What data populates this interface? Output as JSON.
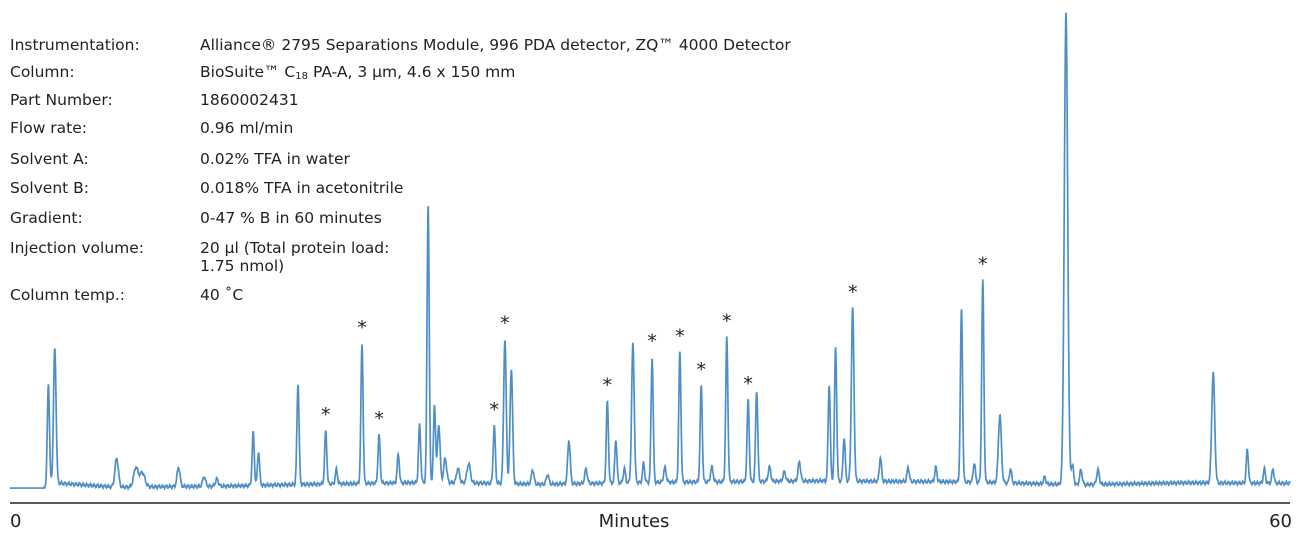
{
  "method": {
    "instrumentation": {
      "label": "Instrumentation:",
      "value": "Alliance® 2795 Separations Module, 996 PDA detector, ZQ™ 4000 Detector"
    },
    "column": {
      "label": "Column:",
      "value_pre": "BioSuite™ C",
      "value_sub": "18",
      "value_post": " PA-A, 3 µm, 4.6 x 150 mm"
    },
    "part_number": {
      "label": "Part Number:",
      "value": "1860002431"
    },
    "flow_rate": {
      "label": "Flow rate:",
      "value": "0.96 ml/min"
    },
    "solvent_a": {
      "label": "Solvent A:",
      "value": "0.02% TFA in water"
    },
    "solvent_b": {
      "label": "Solvent B:",
      "value": "0.018% TFA in acetonitrile"
    },
    "gradient": {
      "label": "Gradient:",
      "value": "0-47 % B in 60 minutes"
    },
    "injection_volume": {
      "label": "Injection volume:",
      "value_line1": "20 µl (Total protein load:",
      "value_line2": "1.75 nmol)"
    },
    "column_temp": {
      "label": "Column temp.:",
      "value": "40 ˚C"
    }
  },
  "chart_data": {
    "type": "line",
    "xlabel": "Minutes",
    "xlim": [
      0,
      60
    ],
    "x_tick_labels": [
      "0",
      "60"
    ],
    "ylim": [
      0,
      100
    ],
    "line_color": "#4f8fc6",
    "baseline": [
      [
        0,
        0.4
      ],
      [
        1.5,
        0.4
      ],
      [
        2,
        1.5
      ],
      [
        5,
        0.6
      ],
      [
        10,
        0.8
      ],
      [
        14,
        1.2
      ],
      [
        20,
        1.6
      ],
      [
        25,
        1.2
      ],
      [
        30,
        1.6
      ],
      [
        38,
        1.9
      ],
      [
        45,
        1.7
      ],
      [
        50,
        1.1
      ],
      [
        55,
        1.5
      ],
      [
        60,
        1.4
      ]
    ],
    "peaks": [
      {
        "rt": 1.8,
        "height": 21,
        "width": 0.05
      },
      {
        "rt": 2.1,
        "height": 28,
        "width": 0.06
      },
      {
        "rt": 5.0,
        "height": 6,
        "width": 0.08
      },
      {
        "rt": 5.9,
        "height": 4,
        "width": 0.1
      },
      {
        "rt": 6.2,
        "height": 3,
        "width": 0.12
      },
      {
        "rt": 7.9,
        "height": 4,
        "width": 0.07
      },
      {
        "rt": 9.1,
        "height": 2,
        "width": 0.07
      },
      {
        "rt": 9.7,
        "height": 1.5,
        "width": 0.07
      },
      {
        "rt": 11.4,
        "height": 11,
        "width": 0.05
      },
      {
        "rt": 11.65,
        "height": 7,
        "width": 0.05
      },
      {
        "rt": 13.5,
        "height": 21,
        "width": 0.05
      },
      {
        "rt": 14.8,
        "height": 11,
        "width": 0.05,
        "starred": true
      },
      {
        "rt": 15.3,
        "height": 3,
        "width": 0.05
      },
      {
        "rt": 16.5,
        "height": 29,
        "width": 0.05,
        "starred": true
      },
      {
        "rt": 17.3,
        "height": 10,
        "width": 0.05,
        "starred": true
      },
      {
        "rt": 18.2,
        "height": 6,
        "width": 0.05
      },
      {
        "rt": 19.2,
        "height": 12,
        "width": 0.05
      },
      {
        "rt": 19.6,
        "height": 58,
        "width": 0.05
      },
      {
        "rt": 19.9,
        "height": 16,
        "width": 0.05
      },
      {
        "rt": 20.1,
        "height": 12,
        "width": 0.06
      },
      {
        "rt": 20.4,
        "height": 5,
        "width": 0.07
      },
      {
        "rt": 21.0,
        "height": 3,
        "width": 0.07
      },
      {
        "rt": 21.5,
        "height": 4,
        "width": 0.08
      },
      {
        "rt": 22.7,
        "height": 12,
        "width": 0.05,
        "starred": true
      },
      {
        "rt": 23.2,
        "height": 30,
        "width": 0.06,
        "starred": true
      },
      {
        "rt": 23.5,
        "height": 24,
        "width": 0.06
      },
      {
        "rt": 24.5,
        "height": 3,
        "width": 0.06
      },
      {
        "rt": 25.2,
        "height": 2,
        "width": 0.06
      },
      {
        "rt": 26.2,
        "height": 9,
        "width": 0.06
      },
      {
        "rt": 27.0,
        "height": 3,
        "width": 0.06
      },
      {
        "rt": 28.0,
        "height": 17,
        "width": 0.05,
        "starred": true
      },
      {
        "rt": 28.4,
        "height": 9,
        "width": 0.05
      },
      {
        "rt": 28.8,
        "height": 3,
        "width": 0.05
      },
      {
        "rt": 29.2,
        "height": 29,
        "width": 0.06
      },
      {
        "rt": 29.7,
        "height": 4,
        "width": 0.05
      },
      {
        "rt": 30.1,
        "height": 26,
        "width": 0.05,
        "starred": true
      },
      {
        "rt": 30.7,
        "height": 3,
        "width": 0.06
      },
      {
        "rt": 31.4,
        "height": 27,
        "width": 0.05,
        "starred": true
      },
      {
        "rt": 32.4,
        "height": 20,
        "width": 0.05,
        "starred": true
      },
      {
        "rt": 32.9,
        "height": 3,
        "width": 0.06
      },
      {
        "rt": 33.6,
        "height": 30,
        "width": 0.05,
        "starred": true
      },
      {
        "rt": 34.6,
        "height": 17,
        "width": 0.05,
        "starred": true
      },
      {
        "rt": 35.0,
        "height": 19,
        "width": 0.05
      },
      {
        "rt": 35.6,
        "height": 3,
        "width": 0.06
      },
      {
        "rt": 36.3,
        "height": 2,
        "width": 0.06
      },
      {
        "rt": 37.0,
        "height": 4,
        "width": 0.06
      },
      {
        "rt": 38.4,
        "height": 20,
        "width": 0.05
      },
      {
        "rt": 38.7,
        "height": 28,
        "width": 0.05
      },
      {
        "rt": 39.1,
        "height": 9,
        "width": 0.05
      },
      {
        "rt": 39.5,
        "height": 36,
        "width": 0.06,
        "starred": true
      },
      {
        "rt": 40.8,
        "height": 5,
        "width": 0.05
      },
      {
        "rt": 42.1,
        "height": 3,
        "width": 0.05
      },
      {
        "rt": 43.4,
        "height": 3,
        "width": 0.05
      },
      {
        "rt": 44.6,
        "height": 36,
        "width": 0.05
      },
      {
        "rt": 45.2,
        "height": 4,
        "width": 0.05
      },
      {
        "rt": 45.6,
        "height": 42,
        "width": 0.05,
        "starred": true
      },
      {
        "rt": 46.4,
        "height": 14,
        "width": 0.07
      },
      {
        "rt": 46.9,
        "height": 3,
        "width": 0.05
      },
      {
        "rt": 48.5,
        "height": 1.5,
        "width": 0.05
      },
      {
        "rt": 49.5,
        "height": 98,
        "width": 0.08
      },
      {
        "rt": 49.8,
        "height": 4,
        "width": 0.06
      },
      {
        "rt": 50.2,
        "height": 3,
        "width": 0.06
      },
      {
        "rt": 51.0,
        "height": 3,
        "width": 0.06
      },
      {
        "rt": 56.4,
        "height": 23,
        "width": 0.07
      },
      {
        "rt": 58.0,
        "height": 7,
        "width": 0.05
      },
      {
        "rt": 58.8,
        "height": 3,
        "width": 0.05
      },
      {
        "rt": 59.2,
        "height": 3,
        "width": 0.05
      }
    ],
    "annotation_symbol": "*"
  }
}
